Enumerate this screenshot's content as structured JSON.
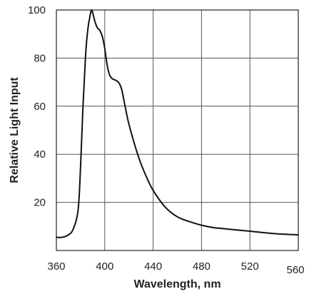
{
  "chart_data": {
    "type": "line",
    "title": "",
    "xlabel": "Wavelength, nm",
    "ylabel": "Relative Light Input",
    "xlim": [
      360,
      560
    ],
    "ylim": [
      0,
      100
    ],
    "grid": true,
    "x_ticks": [
      360,
      400,
      440,
      480,
      520,
      560
    ],
    "x_tick_labels": [
      "360",
      "400",
      "440",
      "480",
      "520",
      "560"
    ],
    "y_ticks": [
      20,
      40,
      60,
      80,
      100
    ],
    "y_tick_labels": [
      "20",
      "40",
      "60",
      "80",
      "100"
    ],
    "series": [
      {
        "x": [
          360,
          365,
          370,
          374,
          378,
          380,
          382,
          384,
          386,
          388,
          389,
          390,
          392,
          394,
          396,
          398,
          400,
          402,
          404,
          406,
          408,
          410,
          412,
          414,
          416,
          418,
          420,
          425,
          430,
          435,
          440,
          450,
          460,
          470,
          480,
          490,
          500,
          520,
          540,
          560
        ],
        "y": [
          5.5,
          5.5,
          6.5,
          9,
          17,
          35,
          60,
          80,
          92,
          98,
          100,
          99,
          95,
          92.5,
          91.5,
          89,
          84,
          77,
          73,
          71.5,
          71,
          70.5,
          69.5,
          67,
          62,
          57,
          52.5,
          43.5,
          36,
          30,
          25,
          18,
          14,
          12,
          10.5,
          9.5,
          9,
          8,
          7,
          6.5
        ]
      }
    ]
  }
}
